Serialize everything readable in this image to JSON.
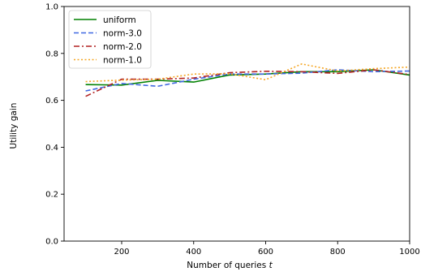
{
  "chart_data": {
    "type": "line",
    "xlabel": "Number of queries t",
    "ylabel": "Utility gain",
    "xlim": [
      40,
      1000
    ],
    "ylim": [
      0.0,
      1.0
    ],
    "xticks": [
      "200",
      "400",
      "600",
      "800",
      "1000"
    ],
    "yticks": [
      "0.0",
      "0.2",
      "0.4",
      "0.6",
      "0.8",
      "1.0"
    ],
    "grid": false,
    "legend_position": "top-left",
    "x": [
      100,
      200,
      300,
      400,
      500,
      600,
      700,
      800,
      900,
      1000
    ],
    "series": [
      {
        "name": "uniform",
        "color": "#008000",
        "style": "solid",
        "values": [
          0.667,
          0.665,
          0.685,
          0.678,
          0.708,
          0.712,
          0.722,
          0.722,
          0.73,
          0.708
        ]
      },
      {
        "name": "norm-3.0",
        "color": "#4169e1",
        "style": "dashed",
        "values": [
          0.64,
          0.672,
          0.66,
          0.69,
          0.712,
          0.712,
          0.716,
          0.73,
          0.722,
          0.725
        ]
      },
      {
        "name": "norm-2.0",
        "color": "#b22222",
        "style": "dashdot",
        "values": [
          0.617,
          0.69,
          0.69,
          0.695,
          0.718,
          0.724,
          0.722,
          0.715,
          0.73,
          0.71
        ]
      },
      {
        "name": "norm-1.0",
        "color": "#f5a623",
        "style": "dotted",
        "values": [
          0.68,
          0.686,
          0.69,
          0.712,
          0.713,
          0.688,
          0.755,
          0.725,
          0.735,
          0.742
        ]
      }
    ]
  }
}
